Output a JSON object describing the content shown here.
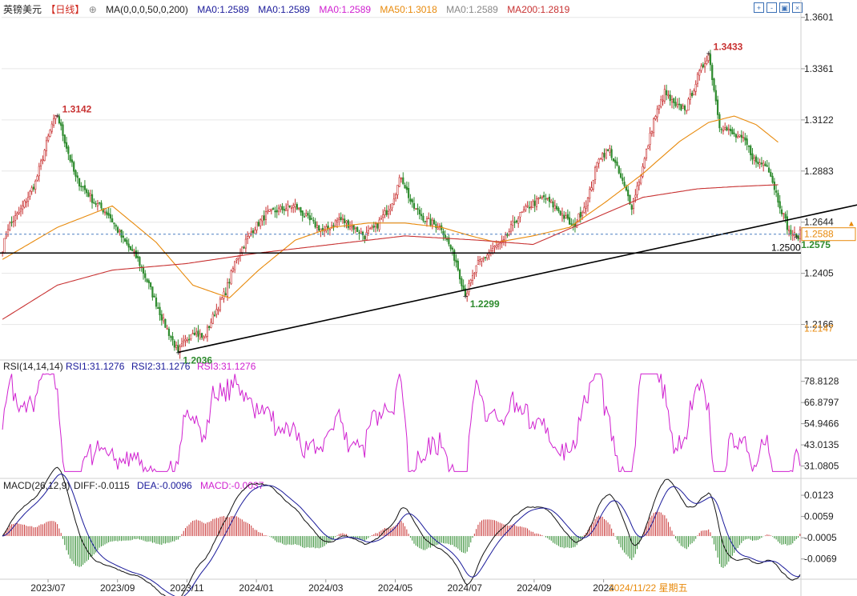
{
  "header": {
    "symbol": "英镑美元",
    "period": "【日线】",
    "ma_label": "MA(0,0,0,50,0,200)",
    "ma_values": [
      {
        "text": "MA0:1.2589",
        "color": "#1a1a9a"
      },
      {
        "text": "MA0:1.2589",
        "color": "#1a1a9a"
      },
      {
        "text": "MA0:1.2589",
        "color": "#d020d0"
      },
      {
        "text": "MA50:1.3018",
        "color": "#e88a0c"
      },
      {
        "text": "MA0:1.2589",
        "color": "#888888"
      },
      {
        "text": "MA200:1.2819",
        "color": "#c83232"
      }
    ],
    "controls": [
      "zoom-in-icon",
      "zoom-out-icon",
      "settings-icon",
      "close-icon"
    ]
  },
  "colors": {
    "up": "#c83232",
    "down": "#2e8b2e",
    "ma50": "#e88a0c",
    "ma200": "#c83232",
    "rsi": "#d020d0",
    "diff": "#111111",
    "dea": "#1a1a9a",
    "grid": "#e6e6e6",
    "axis_text": "#222222",
    "price_tag": "#e88a0c"
  },
  "chart_data": [
    {
      "type": "candlestick",
      "title": "英镑美元 日线",
      "ylim": [
        1.2,
        1.36
      ],
      "y_ticks": [
        1.3601,
        1.3361,
        1.3122,
        1.2883,
        1.2644,
        1.2405,
        1.2166
      ],
      "x_ticks": [
        "2023/07",
        "2023/09",
        "2023/11",
        "2024/01",
        "2024/03",
        "2024/05",
        "2024/07",
        "2024/09",
        "2024"
      ],
      "date_end_label": "2024/11/22 星期五",
      "current_price": 1.2588,
      "extra_tag": 1.2147,
      "horizontal_line": {
        "value": 1.25,
        "label": "1.2500"
      },
      "annotations": [
        {
          "label": "1.3142",
          "value": 1.3142,
          "type": "high"
        },
        {
          "label": "1.2036",
          "value": 1.2036,
          "type": "low"
        },
        {
          "label": "1.2299",
          "value": 1.2299,
          "type": "low"
        },
        {
          "label": "1.3433",
          "value": 1.3433,
          "type": "high"
        },
        {
          "label": "1.2575",
          "value": 1.2575,
          "type": "low"
        }
      ],
      "anchors": [
        [
          0,
          1.252
        ],
        [
          3,
          1.262
        ],
        [
          10,
          1.27
        ],
        [
          18,
          1.283
        ],
        [
          27,
          1.31
        ],
        [
          30,
          1.3142
        ],
        [
          40,
          1.285
        ],
        [
          50,
          1.274
        ],
        [
          58,
          1.268
        ],
        [
          66,
          1.256
        ],
        [
          74,
          1.247
        ],
        [
          80,
          1.235
        ],
        [
          88,
          1.218
        ],
        [
          96,
          1.2036
        ],
        [
          104,
          1.214
        ],
        [
          110,
          1.21
        ],
        [
          116,
          1.222
        ],
        [
          122,
          1.232
        ],
        [
          128,
          1.248
        ],
        [
          136,
          1.26
        ],
        [
          144,
          1.268
        ],
        [
          150,
          1.27
        ],
        [
          160,
          1.272
        ],
        [
          168,
          1.265
        ],
        [
          176,
          1.26
        ],
        [
          184,
          1.266
        ],
        [
          192,
          1.262
        ],
        [
          198,
          1.258
        ],
        [
          204,
          1.262
        ],
        [
          212,
          1.272
        ],
        [
          218,
          1.286
        ],
        [
          224,
          1.272
        ],
        [
          232,
          1.265
        ],
        [
          240,
          1.262
        ],
        [
          248,
          1.246
        ],
        [
          253,
          1.2299
        ],
        [
          260,
          1.245
        ],
        [
          268,
          1.252
        ],
        [
          274,
          1.255
        ],
        [
          280,
          1.265
        ],
        [
          288,
          1.272
        ],
        [
          296,
          1.276
        ],
        [
          304,
          1.27
        ],
        [
          312,
          1.262
        ],
        [
          320,
          1.275
        ],
        [
          326,
          1.295
        ],
        [
          332,
          1.298
        ],
        [
          338,
          1.285
        ],
        [
          344,
          1.272
        ],
        [
          350,
          1.29
        ],
        [
          356,
          1.312
        ],
        [
          362,
          1.325
        ],
        [
          368,
          1.318
        ],
        [
          374,
          1.318
        ],
        [
          380,
          1.332
        ],
        [
          386,
          1.3433
        ],
        [
          392,
          1.31
        ],
        [
          400,
          1.305
        ],
        [
          406,
          1.302
        ],
        [
          412,
          1.292
        ],
        [
          418,
          1.292
        ],
        [
          424,
          1.275
        ],
        [
          430,
          1.26
        ],
        [
          434,
          1.2575
        ],
        [
          436,
          1.259
        ]
      ],
      "series": [
        {
          "name": "MA50",
          "color": "#e88a0c",
          "anchors": [
            [
              0,
              1.247
            ],
            [
              30,
              1.262
            ],
            [
              60,
              1.272
            ],
            [
              84,
              1.255
            ],
            [
              104,
              1.235
            ],
            [
              124,
              1.229
            ],
            [
              140,
              1.242
            ],
            [
              160,
              1.256
            ],
            [
              180,
              1.262
            ],
            [
              200,
              1.264
            ],
            [
              220,
              1.264
            ],
            [
              240,
              1.262
            ],
            [
              256,
              1.258
            ],
            [
              270,
              1.255
            ],
            [
              290,
              1.258
            ],
            [
              310,
              1.262
            ],
            [
              330,
              1.274
            ],
            [
              350,
              1.287
            ],
            [
              370,
              1.302
            ],
            [
              386,
              1.311
            ],
            [
              400,
              1.314
            ],
            [
              412,
              1.31
            ],
            [
              424,
              1.3018
            ]
          ]
        },
        {
          "name": "MA200",
          "color": "#c83232",
          "anchors": [
            [
              0,
              1.219
            ],
            [
              30,
              1.235
            ],
            [
              60,
              1.242
            ],
            [
              100,
              1.245
            ],
            [
              140,
              1.25
            ],
            [
              180,
              1.254
            ],
            [
              220,
              1.258
            ],
            [
              260,
              1.256
            ],
            [
              290,
              1.254
            ],
            [
              320,
              1.265
            ],
            [
              350,
              1.276
            ],
            [
              380,
              1.28
            ],
            [
              400,
              1.281
            ],
            [
              424,
              1.2819
            ]
          ]
        }
      ],
      "trendline": {
        "points": [
          [
            96,
            1.2036
          ],
          [
            253,
            1.2299
          ],
          [
            470,
            1.273
          ]
        ]
      }
    },
    {
      "type": "line",
      "title": "RSI(14,14,14)",
      "values_text": [
        "RSI1:31.1276",
        "RSI2:31.1276",
        "RSI3:31.1276"
      ],
      "ylim": [
        25,
        85
      ],
      "y_ticks": [
        78.8128,
        66.8797,
        54.9466,
        43.0135,
        31.0805
      ],
      "last": 31.1276
    },
    {
      "type": "macd",
      "title": "MACD(26,12,9)",
      "values_text": [
        "DIFF:-0.0115",
        "DEA:-0.0096",
        "MACD:-0.0037"
      ],
      "ylim": [
        -0.013,
        0.014
      ],
      "y_ticks": [
        0.0123,
        0.0059,
        -0.0005,
        -0.0069
      ],
      "last": {
        "diff": -0.0115,
        "dea": -0.0096,
        "macd": -0.0037
      }
    }
  ]
}
